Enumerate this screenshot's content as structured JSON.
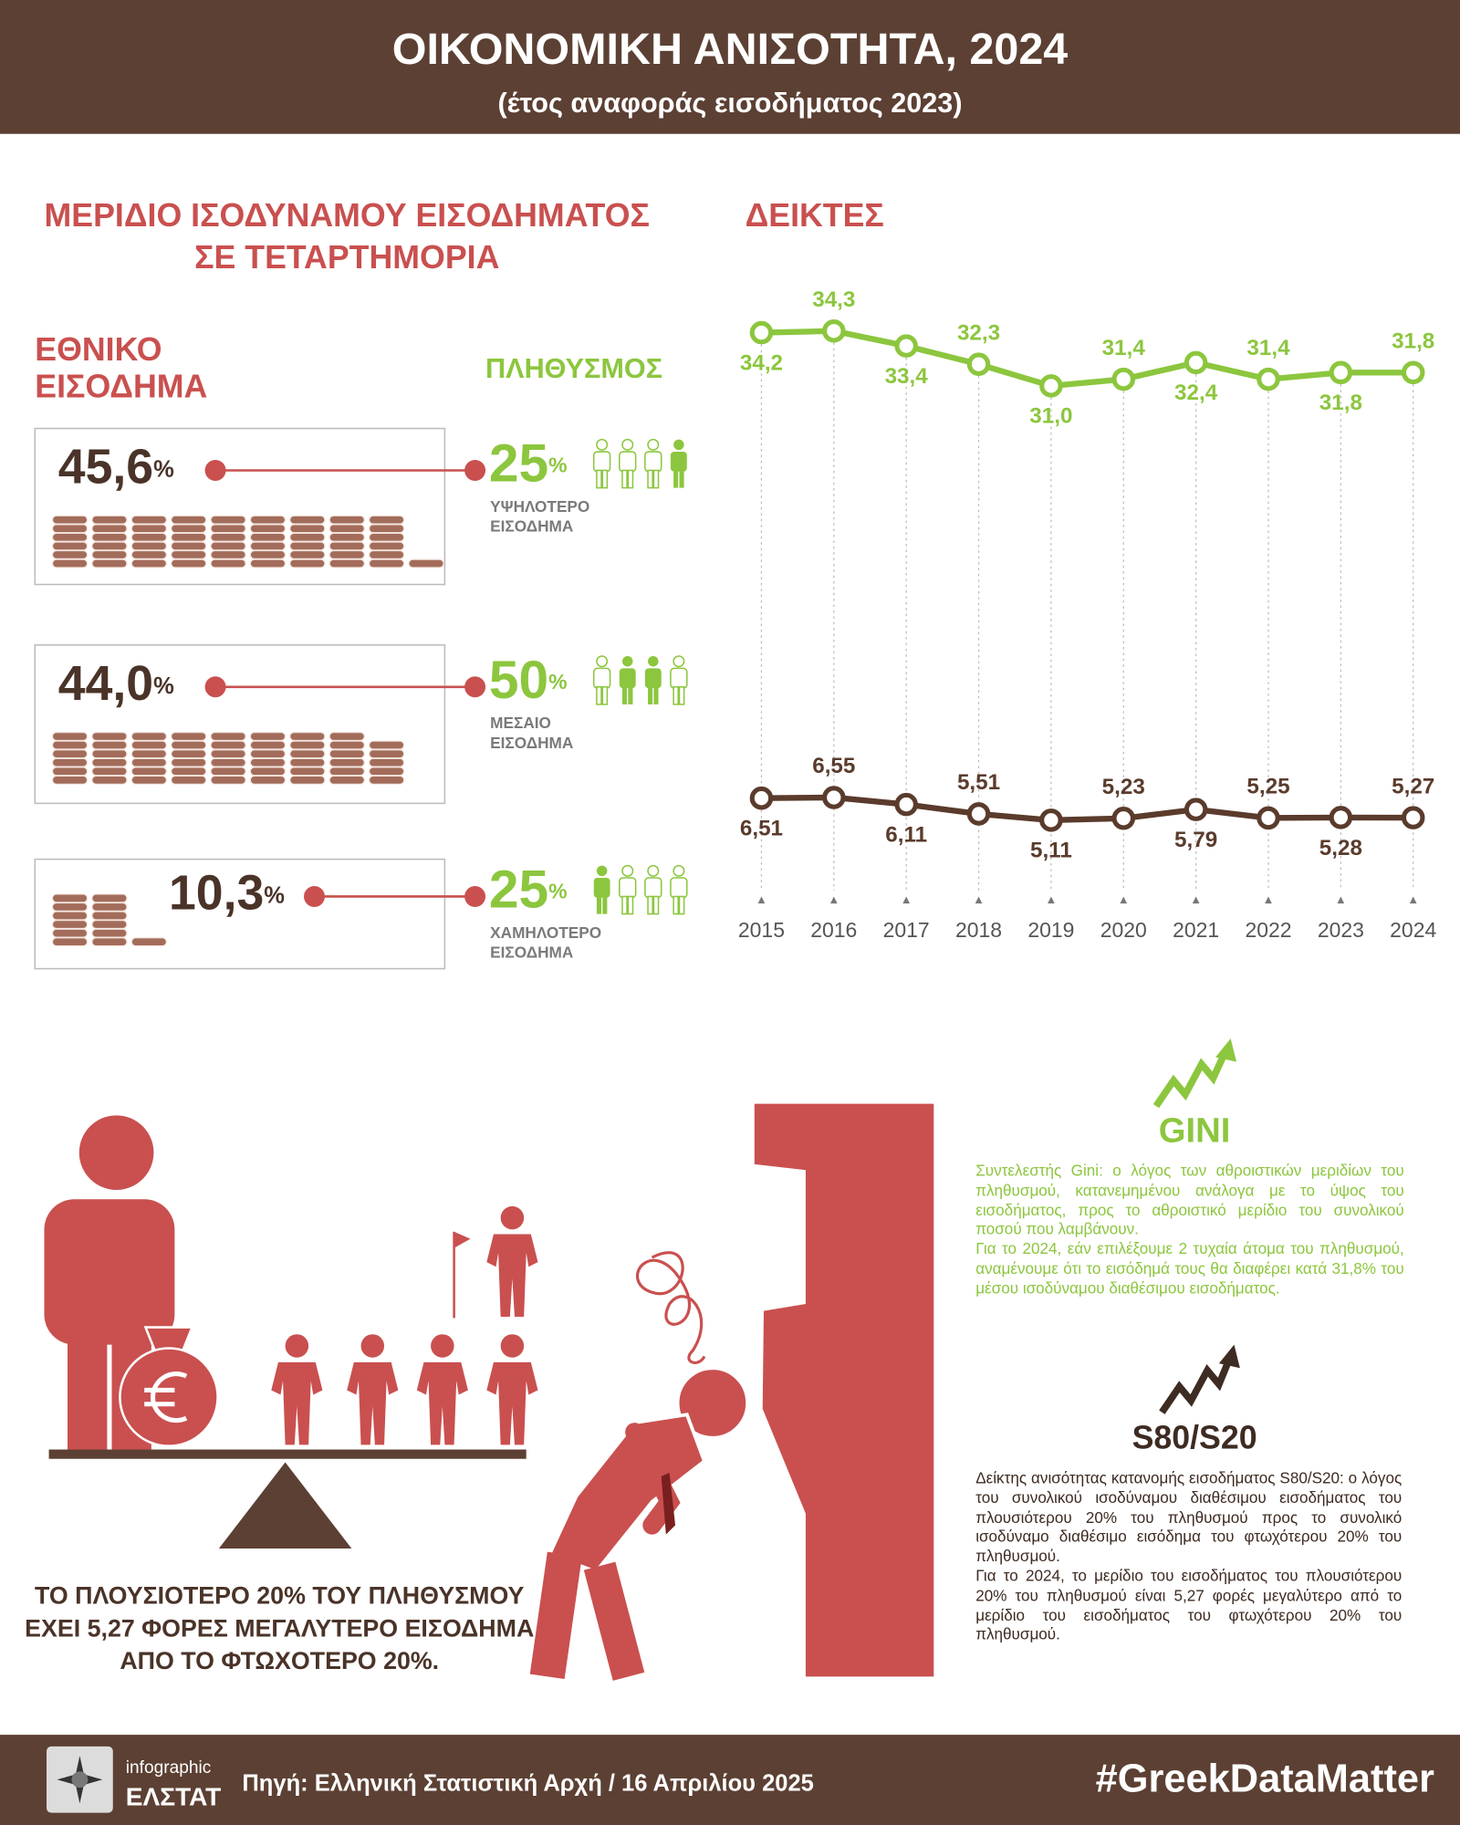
{
  "header": {
    "title": "ΟΙΚΟΝΟΜΙΚΗ ΑΝΙΣΟΤΗΤΑ, 2024",
    "subtitle": "(έτος αναφοράς εισοδήματος 2023)"
  },
  "quintiles": {
    "title": [
      "ΜΕΡΙΔΙΟ ΙΣΟΔΥΝΑΜΟΥ ΕΙΣΟΔΗΜΑΤΟΣ",
      "ΣΕ ΤΕΤΑΡΤΗΜΟΡΙΑ"
    ],
    "income_heading": [
      "ΕΘΝΙΚΟ",
      "ΕΙΣΟΔΗΜΑ"
    ],
    "population_heading": "ΠΛΗΘΥΣΜΟΣ",
    "unit": "%",
    "rows": [
      {
        "share": 45.6,
        "share_label": "45,6",
        "population": 25,
        "label": [
          "ΥΨΗΛΟΤΕΡΟ",
          "ΕΙΣΟΔΗΜΑ"
        ]
      },
      {
        "share": 44.0,
        "share_label": "44,0",
        "population": 50,
        "label": [
          "ΜΕΣΑΙΟ",
          "ΕΙΣΟΔΗΜΑ"
        ]
      },
      {
        "share": 10.3,
        "share_label": "10,3",
        "population": 25,
        "label": [
          "ΧΑΜΗΛΟΤΕΡΟ",
          "ΕΙΣΟΔΗΜΑ"
        ]
      }
    ]
  },
  "chart_data": {
    "type": "line",
    "title": "ΔΕΙΚΤΕΣ",
    "categories": [
      "2015",
      "2016",
      "2017",
      "2018",
      "2019",
      "2020",
      "2021",
      "2022",
      "2023",
      "2024"
    ],
    "series": [
      {
        "name": "GINI",
        "color": "#8cc63e",
        "values": [
          34.2,
          34.3,
          33.4,
          32.3,
          31.0,
          31.4,
          32.4,
          31.4,
          31.8,
          31.8
        ],
        "value_labels": [
          "34,2",
          "34,3",
          "33,4",
          "32,3",
          "31,0",
          "31,4",
          "32,4",
          "31,4",
          "31,8",
          "31,8"
        ]
      },
      {
        "name": "S80/S20",
        "color": "#5a3b2c",
        "axis": "y2",
        "values": [
          6.51,
          6.55,
          6.11,
          5.51,
          5.11,
          5.23,
          5.79,
          5.25,
          5.28,
          5.27
        ],
        "value_labels": [
          "6,51",
          "6,55",
          "6,11",
          "5,51",
          "5,11",
          "5,23",
          "5,79",
          "5,25",
          "5,28",
          "5,27"
        ]
      }
    ],
    "ylim": [
      1,
      36
    ],
    "y2lim": [
      1,
      38
    ]
  },
  "notes": {
    "gini": [
      "Συντελεστής Gini: ο λόγος των αθροιστικών μεριδίων του πληθυσμού, κατανεμημένου ανάλογα με το ύψος του εισοδήματος, προς το αθροιστικό μερίδιο του συνολικού ποσού που λαμβάνουν.",
      "Για το 2024, εάν επιλέξουμε 2 τυχαία άτομα του πληθυσμού, αναμένουμε ότι το εισόδημά τους θα διαφέρει κατά 31,8% του μέσου ισοδύναμου διαθέσιμου εισοδήματος."
    ],
    "s80": [
      "Δείκτης ανισότητας κατανομής εισοδήματος S80/S20: ο λόγος του συνολικού ισοδύναμου διαθέσιμου εισοδήματος του πλουσιότερου 20% του πληθυσμού προς το συνολικό ισοδύναμο διαθέσιμο εισόδημα του φτωχότερου 20% του πληθυσμού.",
      "Για το 2024, το μερίδιο του εισοδήματος του πλουσιότερου 20% του πληθυσμού είναι 5,27 φορές μεγαλύτερο από το μερίδιο του εισοδήματος του φτωχότερου 20% του πληθυσμού."
    ]
  },
  "caption": [
    "ΤΟ ΠΛΟΥΣΙΟΤΕΡΟ 20% ΤΟΥ ΠΛΗΘΥΣΜΟΥ",
    "ΕΧΕΙ 5,27 ΦΟΡΕΣ ΜΕΓΑΛΥΤΕΡΟ ΕΙΣΟΔΗΜΑ",
    "ΑΠΟ ΤΟ ΦΤΩΧΟΤΕΡΟ 20%."
  ],
  "footer": {
    "brand_top": "infographic",
    "brand": "ΕΛΣΤΑΤ",
    "source": "Πηγή: Ελληνική Στατιστική Αρχή / 16 Απριλίου 2025",
    "hashtag": "#GreekDataMatter"
  }
}
